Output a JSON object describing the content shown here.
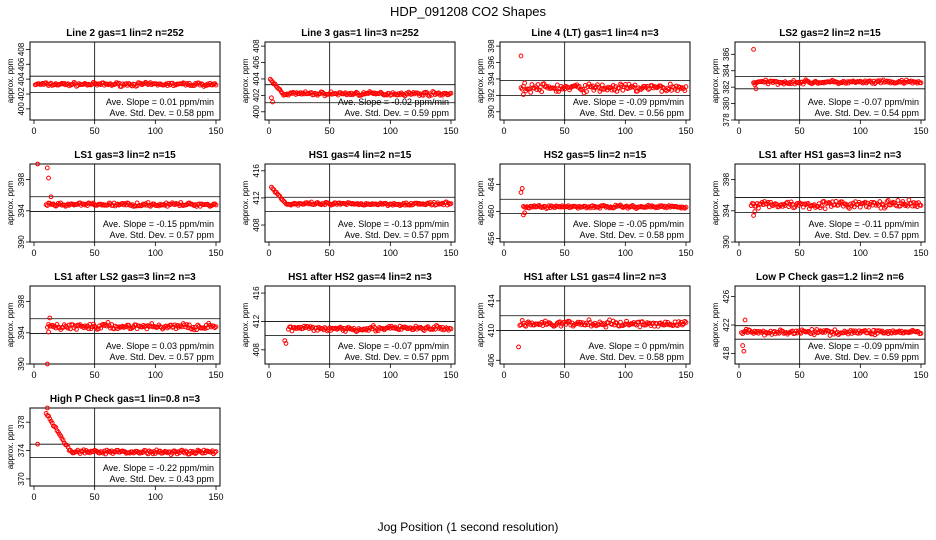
{
  "page": {
    "title": "HDP_091208  CO2 Shapes",
    "xlabel": "Jog Position (1 second resolution)",
    "ylabel": "approx. ppm",
    "slope_label": "Ave. Slope =",
    "slope_unit": "ppm/min",
    "std_label": "Ave. Std. Dev. =",
    "std_unit": "ppm"
  },
  "chart_data": [
    {
      "type": "scatter",
      "title": "Line 2 gas=1 lin=2 n=252",
      "x_range": [
        0,
        150
      ],
      "y_range": [
        398.5,
        409
      ],
      "yticks": [
        400,
        402,
        404,
        406,
        408
      ],
      "xticks": [
        0,
        50,
        100,
        150
      ],
      "hlines": [
        404.4,
        402.2
      ],
      "vline": 50,
      "x_start": 1,
      "level": 403.3,
      "noise": 0.2,
      "spikes": [],
      "start_profile": null,
      "slope": "0.01",
      "std_dev": "0.58"
    },
    {
      "type": "scatter",
      "title": "Line 3 gas=1 lin=3 n=252",
      "x_range": [
        0,
        150
      ],
      "y_range": [
        399,
        408.5
      ],
      "yticks": [
        400,
        402,
        404,
        406,
        408
      ],
      "xticks": [
        0,
        50,
        100,
        150
      ],
      "hlines": [
        403.3,
        401.1
      ],
      "vline": 50,
      "x_start": 1,
      "level": 402.2,
      "noise": 0.2,
      "spikes": [
        [
          2,
          401.7
        ],
        [
          3,
          401.2
        ]
      ],
      "start_profile": {
        "peak": 403.9,
        "until": 12
      },
      "slope": "-0.02",
      "std_dev": "0.59"
    },
    {
      "type": "scatter",
      "title": "Line 4 (LT) gas=1 lin=4 n=3",
      "x_range": [
        0,
        150
      ],
      "y_range": [
        389,
        398.5
      ],
      "yticks": [
        390,
        392,
        394,
        396,
        398
      ],
      "xticks": [
        0,
        50,
        100,
        150
      ],
      "hlines": [
        393.8,
        392.0
      ],
      "vline": 50,
      "x_start": 14,
      "level": 392.9,
      "noise": 0.45,
      "spikes": [
        [
          14,
          396.8
        ],
        [
          16,
          392.1
        ]
      ],
      "start_profile": null,
      "slope": "-0.09",
      "std_dev": "0.56"
    },
    {
      "type": "scatter",
      "title": "LS2 gas=2 lin=2 n=15",
      "x_range": [
        0,
        150
      ],
      "y_range": [
        378,
        387.5
      ],
      "yticks": [
        378,
        380,
        382,
        384,
        386
      ],
      "xticks": [
        0,
        50,
        100,
        150
      ],
      "hlines": [
        383.3,
        381.8
      ],
      "vline": 50,
      "x_start": 12,
      "level": 382.6,
      "noise": 0.2,
      "spikes": [
        [
          12,
          386.6
        ],
        [
          14,
          381.8
        ],
        [
          13,
          382.3
        ]
      ],
      "start_profile": null,
      "slope": "-0.07",
      "std_dev": "0.54"
    },
    {
      "type": "scatter",
      "title": "LS1 gas=3 lin=2 n=15",
      "x_range": [
        0,
        150
      ],
      "y_range": [
        390,
        400
      ],
      "yticks": [
        390,
        394,
        398
      ],
      "xticks": [
        0,
        50,
        100,
        150
      ],
      "hlines": [
        395.8,
        393.9
      ],
      "vline": 50,
      "x_start": 10,
      "level": 394.8,
      "noise": 0.2,
      "spikes": [
        [
          3,
          400
        ],
        [
          11,
          399.5
        ],
        [
          12,
          398.2
        ],
        [
          14,
          395.8
        ]
      ],
      "start_profile": null,
      "slope": "-0.15",
      "std_dev": "0.57"
    },
    {
      "type": "scatter",
      "title": "HS1 gas=4 lin=2 n=15",
      "x_range": [
        0,
        150
      ],
      "y_range": [
        405.5,
        417
      ],
      "yticks": [
        408,
        412,
        416
      ],
      "xticks": [
        0,
        50,
        100,
        150
      ],
      "hlines": [
        412.1,
        410.0
      ],
      "vline": 50,
      "x_start": 2,
      "level": 411.1,
      "noise": 0.2,
      "spikes": [],
      "start_profile": {
        "peak": 413.6,
        "until": 14
      },
      "slope": "-0.13",
      "std_dev": "0.57"
    },
    {
      "type": "scatter",
      "title": "HS2 gas=5 lin=2 n=15",
      "x_range": [
        0,
        150
      ],
      "y_range": [
        455.5,
        467
      ],
      "yticks": [
        456,
        460,
        464
      ],
      "xticks": [
        0,
        50,
        100,
        150
      ],
      "hlines": [
        461.8,
        459.7
      ],
      "vline": 50,
      "x_start": 16,
      "level": 460.7,
      "noise": 0.2,
      "spikes": [
        [
          14,
          462.8
        ],
        [
          15,
          463.4
        ],
        [
          17,
          459.8
        ],
        [
          16,
          459.5
        ]
      ],
      "start_profile": null,
      "slope": "-0.05",
      "std_dev": "0.58"
    },
    {
      "type": "scatter",
      "title": "LS1 after HS1 gas=3 lin=2 n=3",
      "x_range": [
        0,
        150
      ],
      "y_range": [
        390,
        400
      ],
      "yticks": [
        390,
        394,
        398
      ],
      "xticks": [
        0,
        50,
        100,
        150
      ],
      "hlines": [
        395.7,
        393.8
      ],
      "vline": 50,
      "x_start": 10,
      "level": 394.8,
      "noise": 0.4,
      "spikes": [
        [
          12,
          393.4
        ],
        [
          13,
          393.9
        ]
      ],
      "start_profile": null,
      "slope": "-0.11",
      "std_dev": "0.57"
    },
    {
      "type": "scatter",
      "title": "LS1 after LS2 gas=3 lin=2 n=3",
      "x_range": [
        0,
        150
      ],
      "y_range": [
        390,
        400
      ],
      "yticks": [
        390,
        394,
        398
      ],
      "xticks": [
        0,
        50,
        100,
        150
      ],
      "hlines": [
        395.8,
        393.9
      ],
      "vline": 50,
      "x_start": 11,
      "level": 394.8,
      "noise": 0.35,
      "spikes": [
        [
          11,
          390
        ],
        [
          12,
          394.1
        ],
        [
          13,
          395.9
        ]
      ],
      "start_profile": null,
      "slope": "0.03",
      "std_dev": "0.57"
    },
    {
      "type": "scatter",
      "title": "HS1 after HS2 gas=4 lin=2 n=3",
      "x_range": [
        0,
        150
      ],
      "y_range": [
        406,
        417
      ],
      "yticks": [
        408,
        412,
        416
      ],
      "xticks": [
        0,
        50,
        100,
        150
      ],
      "hlines": [
        412.0,
        410.0
      ],
      "vline": 50,
      "x_start": 16,
      "level": 411.0,
      "noise": 0.35,
      "spikes": [
        [
          13,
          409.3
        ],
        [
          14,
          408.9
        ]
      ],
      "start_profile": null,
      "slope": "-0.07",
      "std_dev": "0.57"
    },
    {
      "type": "scatter",
      "title": "HS1 after LS1 gas=4 lin=2 n=3",
      "x_range": [
        0,
        150
      ],
      "y_range": [
        405.5,
        416
      ],
      "yticks": [
        406,
        410,
        414
      ],
      "xticks": [
        0,
        50,
        100,
        150
      ],
      "hlines": [
        412.0,
        410.0
      ],
      "vline": 50,
      "x_start": 13,
      "level": 410.9,
      "noise": 0.35,
      "spikes": [
        [
          12,
          407.8
        ]
      ],
      "start_profile": null,
      "slope": "0",
      "std_dev": "0.58"
    },
    {
      "type": "scatter",
      "title": "Low P Check gas=1.2 lin=2 n=6",
      "x_range": [
        0,
        150
      ],
      "y_range": [
        416.5,
        427.5
      ],
      "yticks": [
        418,
        422,
        426
      ],
      "xticks": [
        0,
        50,
        100,
        150
      ],
      "hlines": [
        421.9,
        420.0
      ],
      "vline": 50,
      "x_start": 2,
      "level": 421.0,
      "noise": 0.3,
      "spikes": [
        [
          3,
          419.1
        ],
        [
          4,
          418.3
        ],
        [
          5,
          422.7
        ],
        [
          6,
          421.4
        ]
      ],
      "start_profile": null,
      "slope": "-0.09",
      "std_dev": "0.59"
    },
    {
      "type": "scatter",
      "title": "High P Check gas=1 lin=0.8 n=3",
      "x_range": [
        0,
        150
      ],
      "y_range": [
        369,
        380
      ],
      "yticks": [
        370,
        374,
        378
      ],
      "xticks": [
        0,
        50,
        100,
        150
      ],
      "hlines": [
        374.9,
        373.0
      ],
      "vline": 50,
      "x_start": 10,
      "level": 373.8,
      "noise": 0.25,
      "spikes": [
        [
          3,
          374.9
        ],
        [
          11,
          380.0
        ]
      ],
      "start_profile": {
        "peak": 379.2,
        "until": 30
      },
      "slope": "-0.22",
      "std_dev": "0.43"
    }
  ]
}
